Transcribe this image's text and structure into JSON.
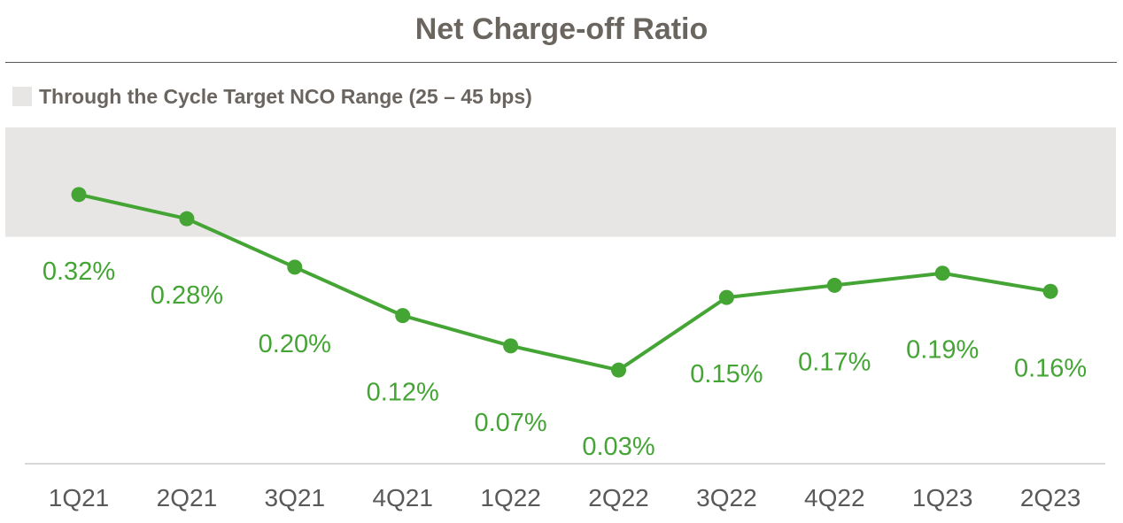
{
  "chart_data": {
    "type": "line",
    "title": "Net Charge-off Ratio",
    "legend": {
      "label": "Through the Cycle Target NCO Range (25 – 45 bps)",
      "placement": "top-left"
    },
    "band": {
      "range": [
        0.25,
        0.45
      ],
      "unit": "%",
      "color": "#e8e6e4"
    },
    "categories": [
      "1Q21",
      "2Q21",
      "3Q21",
      "4Q21",
      "1Q22",
      "2Q22",
      "3Q22",
      "4Q22",
      "1Q23",
      "2Q23"
    ],
    "series": [
      {
        "values": [
          0.32,
          0.28,
          0.2,
          0.12,
          0.07,
          0.03,
          0.15,
          0.17,
          0.19,
          0.16
        ],
        "labels": [
          "0.32%",
          "0.28%",
          "0.20%",
          "0.12%",
          "0.07%",
          "0.03%",
          "0.15%",
          "0.17%",
          "0.19%",
          "0.16%"
        ],
        "color": "#44a535"
      }
    ],
    "grid": false
  }
}
